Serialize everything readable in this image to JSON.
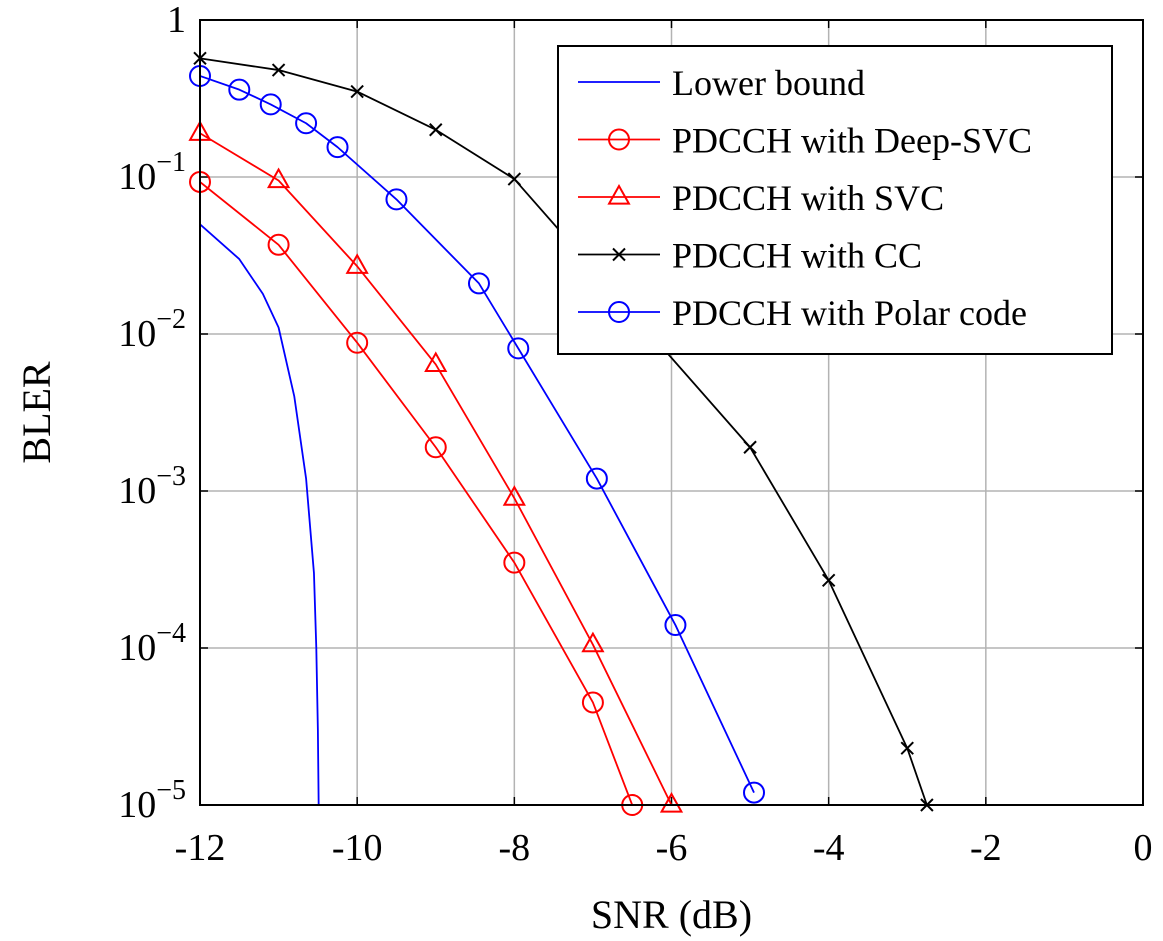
{
  "chart_data": {
    "type": "line",
    "xlabel": "SNR (dB)",
    "ylabel": "BLER",
    "xscale": "linear",
    "yscale": "log",
    "xlim": [
      -12,
      0
    ],
    "ylim": [
      1e-05,
      1
    ],
    "grid": true,
    "legend_position": "top-right",
    "x_ticks": [
      {
        "value": -12,
        "label": "-12"
      },
      {
        "value": -10,
        "label": "-10"
      },
      {
        "value": -8,
        "label": "-8"
      },
      {
        "value": -6,
        "label": "-6"
      },
      {
        "value": -4,
        "label": "-4"
      },
      {
        "value": -2,
        "label": "-2"
      },
      {
        "value": 0,
        "label": "0"
      }
    ],
    "y_ticks": [
      {
        "value": 1,
        "base": "1",
        "exp": ""
      },
      {
        "value": 0.1,
        "base": "10",
        "exp": "−1"
      },
      {
        "value": 0.01,
        "base": "10",
        "exp": "−2"
      },
      {
        "value": 0.001,
        "base": "10",
        "exp": "−3"
      },
      {
        "value": 0.0001,
        "base": "10",
        "exp": "−4"
      },
      {
        "value": 1e-05,
        "base": "10",
        "exp": "−5"
      }
    ],
    "series": [
      {
        "name": "Lower bound",
        "color": "#0000ff",
        "marker": "none",
        "points": [
          {
            "x": -12.0,
            "y": 0.05
          },
          {
            "x": -11.5,
            "y": 0.03
          },
          {
            "x": -11.2,
            "y": 0.018
          },
          {
            "x": -11.0,
            "y": 0.011
          },
          {
            "x": -10.8,
            "y": 0.004
          },
          {
            "x": -10.65,
            "y": 0.0012
          },
          {
            "x": -10.55,
            "y": 0.0003
          },
          {
            "x": -10.52,
            "y": 0.0001
          },
          {
            "x": -10.5,
            "y": 3e-05
          },
          {
            "x": -10.49,
            "y": 1e-05
          }
        ]
      },
      {
        "name": "PDCCH with Deep-SVC",
        "color": "#ff0000",
        "marker": "circle",
        "points": [
          {
            "x": -12,
            "y": 0.093
          },
          {
            "x": -11,
            "y": 0.037
          },
          {
            "x": -10,
            "y": 0.0088
          },
          {
            "x": -9,
            "y": 0.0019
          },
          {
            "x": -8,
            "y": 0.00035
          },
          {
            "x": -7,
            "y": 4.5e-05
          },
          {
            "x": -6.5,
            "y": 1e-05
          }
        ]
      },
      {
        "name": "PDCCH with SVC",
        "color": "#ff0000",
        "marker": "triangle",
        "points": [
          {
            "x": -12,
            "y": 0.19
          },
          {
            "x": -11,
            "y": 0.095
          },
          {
            "x": -10,
            "y": 0.027
          },
          {
            "x": -9,
            "y": 0.0064
          },
          {
            "x": -8,
            "y": 0.0009
          },
          {
            "x": -7,
            "y": 0.000105
          },
          {
            "x": -6,
            "y": 1e-05
          }
        ]
      },
      {
        "name": "PDCCH with CC",
        "color": "#000000",
        "marker": "x",
        "points": [
          {
            "x": -12,
            "y": 0.57
          },
          {
            "x": -11,
            "y": 0.48
          },
          {
            "x": -10,
            "y": 0.35
          },
          {
            "x": -9,
            "y": 0.2
          },
          {
            "x": -8,
            "y": 0.097
          },
          {
            "x": -5,
            "y": 0.0019
          },
          {
            "x": -4,
            "y": 0.00027
          },
          {
            "x": -3,
            "y": 2.3e-05
          },
          {
            "x": -2.75,
            "y": 1e-05
          }
        ]
      },
      {
        "name": "PDCCH with Polar code",
        "color": "#0000ff",
        "marker": "circle",
        "points": [
          {
            "x": -12,
            "y": 0.44
          },
          {
            "x": -11.5,
            "y": 0.36
          },
          {
            "x": -11.1,
            "y": 0.29
          },
          {
            "x": -10.65,
            "y": 0.22
          },
          {
            "x": -10.25,
            "y": 0.155
          },
          {
            "x": -9.5,
            "y": 0.072
          },
          {
            "x": -8.45,
            "y": 0.021
          },
          {
            "x": -7.95,
            "y": 0.0081
          },
          {
            "x": -6.95,
            "y": 0.0012
          },
          {
            "x": -5.95,
            "y": 0.00014
          },
          {
            "x": -4.95,
            "y": 1.2e-05
          }
        ]
      }
    ],
    "legend_order": [
      0,
      1,
      2,
      3,
      4
    ]
  }
}
